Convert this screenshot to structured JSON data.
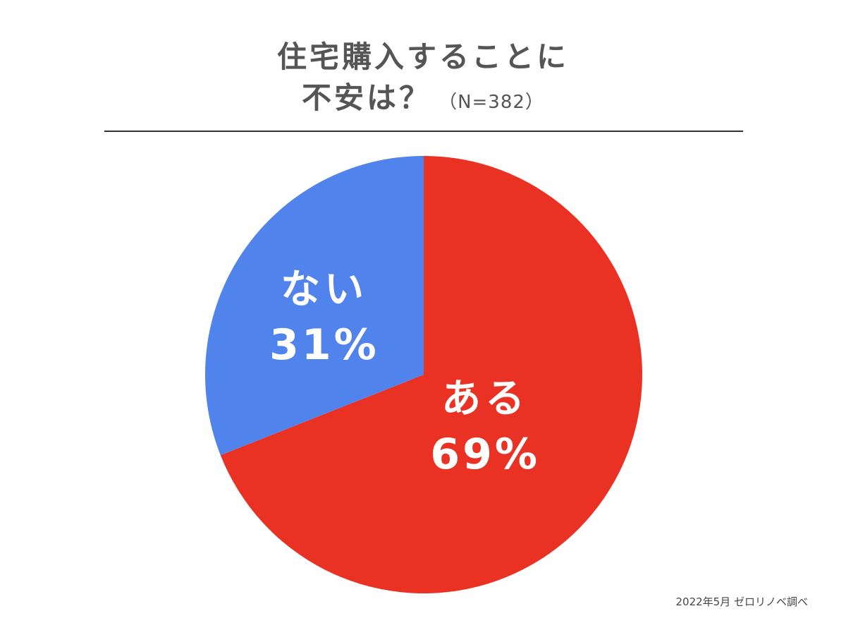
{
  "chart_data": {
    "type": "pie",
    "title_line1": "住宅購入することに",
    "title_line2": "不安は？",
    "title_sample": "（N=382）",
    "slices": [
      {
        "label": "ある",
        "value": 69,
        "value_label": "69%",
        "color": "#e93223"
      },
      {
        "label": "ない",
        "value": 31,
        "value_label": "31%",
        "color": "#5183ec"
      }
    ],
    "start": "12 o'clock",
    "direction": "clockwise",
    "legend": "none"
  },
  "footer": {
    "source": "2022年5月 ゼロリノベ調べ"
  }
}
